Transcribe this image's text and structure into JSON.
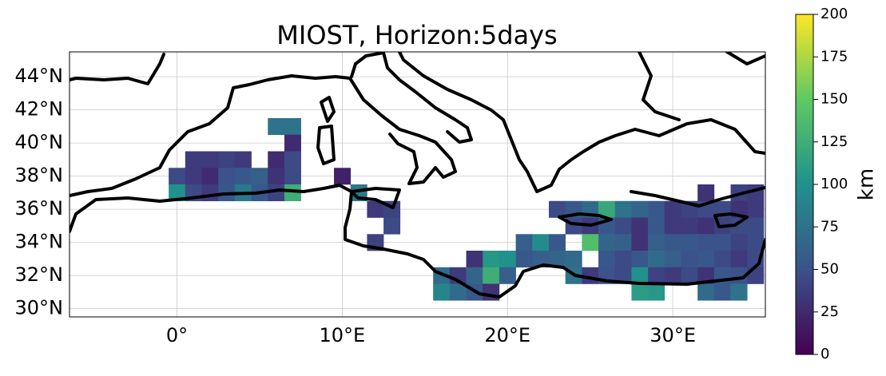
{
  "chart_data": {
    "type": "map",
    "title": "MIOST, Horizon:5days",
    "xlim": [
      -6.5,
      35.6
    ],
    "ylim": [
      29.5,
      45.5
    ],
    "xticks": [
      {
        "value": 0,
        "label": "0°"
      },
      {
        "value": 10,
        "label": "10°E"
      },
      {
        "value": 20,
        "label": "20°E"
      },
      {
        "value": 30,
        "label": "30°E"
      }
    ],
    "yticks": [
      {
        "value": 30,
        "label": "30°N"
      },
      {
        "value": 32,
        "label": "32°N"
      },
      {
        "value": 34,
        "label": "34°N"
      },
      {
        "value": 36,
        "label": "36°N"
      },
      {
        "value": 38,
        "label": "38°N"
      },
      {
        "value": 40,
        "label": "40°N"
      },
      {
        "value": 42,
        "label": "42°N"
      },
      {
        "value": 44,
        "label": "44°N"
      }
    ],
    "grid": true,
    "colormap": "viridis",
    "colorbar": {
      "label": "km",
      "lim": [
        0,
        200
      ],
      "ticks": [
        0,
        25,
        50,
        75,
        100,
        125,
        150,
        175,
        200
      ]
    },
    "cells": [
      [
        6,
        41,
        75
      ],
      [
        7,
        41,
        75
      ],
      [
        7,
        40,
        25
      ],
      [
        1,
        39,
        35
      ],
      [
        2,
        39,
        35
      ],
      [
        3,
        39,
        40
      ],
      [
        4,
        39,
        35
      ],
      [
        6,
        39,
        25
      ],
      [
        7,
        39,
        45
      ],
      [
        0,
        38,
        45
      ],
      [
        1,
        38,
        35
      ],
      [
        2,
        38,
        25
      ],
      [
        3,
        38,
        50
      ],
      [
        4,
        38,
        55
      ],
      [
        5,
        38,
        60
      ],
      [
        6,
        38,
        30
      ],
      [
        7,
        38,
        45
      ],
      [
        10,
        38,
        20
      ],
      [
        0,
        37,
        100
      ],
      [
        1,
        37,
        45
      ],
      [
        2,
        37,
        35
      ],
      [
        3,
        37,
        55
      ],
      [
        4,
        37,
        80
      ],
      [
        5,
        37,
        55
      ],
      [
        6,
        37,
        40
      ],
      [
        7,
        37,
        125
      ],
      [
        11,
        37,
        80
      ],
      [
        32,
        37,
        30
      ],
      [
        34,
        37,
        40
      ],
      [
        35,
        37,
        35
      ],
      [
        12,
        36,
        35
      ],
      [
        13,
        36,
        40
      ],
      [
        23,
        36,
        45
      ],
      [
        24,
        36,
        55
      ],
      [
        25,
        36,
        70
      ],
      [
        26,
        36,
        120
      ],
      [
        27,
        36,
        75
      ],
      [
        28,
        36,
        65
      ],
      [
        29,
        36,
        55
      ],
      [
        30,
        36,
        35
      ],
      [
        31,
        36,
        40
      ],
      [
        32,
        36,
        45
      ],
      [
        33,
        36,
        45
      ],
      [
        34,
        36,
        30
      ],
      [
        35,
        36,
        35
      ],
      [
        13,
        35,
        45
      ],
      [
        24,
        35,
        45
      ],
      [
        25,
        35,
        35
      ],
      [
        26,
        35,
        55
      ],
      [
        27,
        35,
        45
      ],
      [
        28,
        35,
        30
      ],
      [
        29,
        35,
        55
      ],
      [
        30,
        35,
        35
      ],
      [
        31,
        35,
        35
      ],
      [
        32,
        35,
        30
      ],
      [
        33,
        35,
        40
      ],
      [
        34,
        35,
        45
      ],
      [
        35,
        35,
        45
      ],
      [
        12,
        34,
        40
      ],
      [
        21,
        34,
        60
      ],
      [
        22,
        34,
        95
      ],
      [
        23,
        34,
        55
      ],
      [
        25,
        34,
        140
      ],
      [
        26,
        34,
        65
      ],
      [
        27,
        34,
        60
      ],
      [
        28,
        34,
        30
      ],
      [
        29,
        34,
        60
      ],
      [
        30,
        34,
        55
      ],
      [
        31,
        34,
        55
      ],
      [
        32,
        34,
        50
      ],
      [
        33,
        34,
        50
      ],
      [
        34,
        34,
        40
      ],
      [
        35,
        34,
        45
      ],
      [
        18,
        33,
        30
      ],
      [
        19,
        33,
        105
      ],
      [
        20,
        33,
        100
      ],
      [
        21,
        33,
        55
      ],
      [
        22,
        33,
        60
      ],
      [
        23,
        33,
        65
      ],
      [
        24,
        33,
        70
      ],
      [
        26,
        33,
        55
      ],
      [
        27,
        33,
        45
      ],
      [
        28,
        33,
        55
      ],
      [
        29,
        33,
        70
      ],
      [
        30,
        33,
        60
      ],
      [
        31,
        33,
        50
      ],
      [
        32,
        33,
        55
      ],
      [
        33,
        33,
        45
      ],
      [
        34,
        33,
        35
      ],
      [
        35,
        33,
        45
      ],
      [
        16,
        32,
        70
      ],
      [
        17,
        32,
        35
      ],
      [
        18,
        32,
        65
      ],
      [
        19,
        32,
        125
      ],
      [
        20,
        32,
        60
      ],
      [
        24,
        32,
        75
      ],
      [
        25,
        32,
        35
      ],
      [
        26,
        32,
        50
      ],
      [
        27,
        32,
        45
      ],
      [
        28,
        32,
        100
      ],
      [
        29,
        32,
        40
      ],
      [
        30,
        32,
        35
      ],
      [
        31,
        32,
        45
      ],
      [
        32,
        32,
        30
      ],
      [
        33,
        32,
        55
      ],
      [
        34,
        32,
        50
      ],
      [
        35,
        32,
        40
      ],
      [
        16,
        31,
        90
      ],
      [
        17,
        31,
        70
      ],
      [
        18,
        31,
        55
      ],
      [
        19,
        31,
        30
      ],
      [
        28,
        31,
        110
      ],
      [
        29,
        31,
        105
      ],
      [
        32,
        31,
        70
      ],
      [
        33,
        31,
        55
      ],
      [
        34,
        31,
        75
      ]
    ]
  }
}
